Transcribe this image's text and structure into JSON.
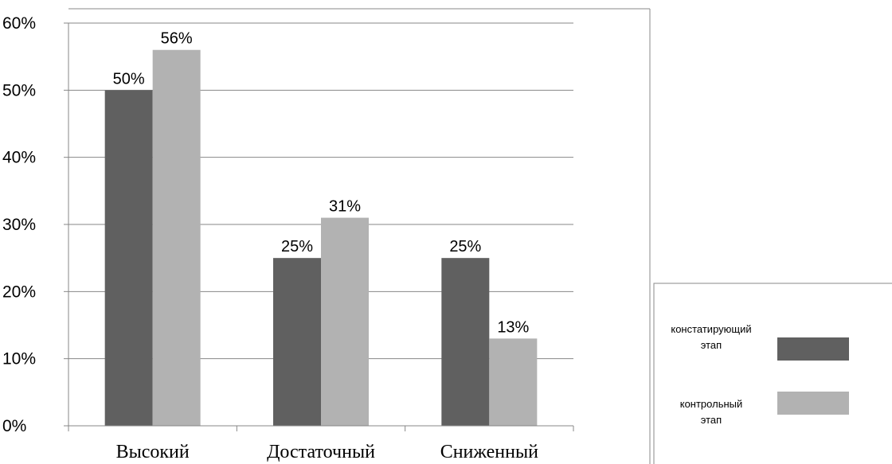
{
  "chart_data": {
    "type": "bar",
    "categories": [
      "Высокий",
      "Достаточный",
      "Сниженный"
    ],
    "series": [
      {
        "name_lines": [
          "констатирующий",
          "этап"
        ],
        "values": [
          50,
          25,
          25
        ],
        "labels": [
          "50%",
          "25%",
          "25%"
        ],
        "color": "#606060"
      },
      {
        "name_lines": [
          "контрольный",
          "этап"
        ],
        "values": [
          56,
          31,
          13
        ],
        "labels": [
          "56%",
          "31%",
          "13%"
        ],
        "color": "#b2b2b2"
      }
    ],
    "y_ticks": [
      "0%",
      "10%",
      "20%",
      "30%",
      "40%",
      "50%",
      "60%"
    ],
    "ylim": [
      0,
      60
    ],
    "grid": true,
    "legend_position": "right"
  }
}
